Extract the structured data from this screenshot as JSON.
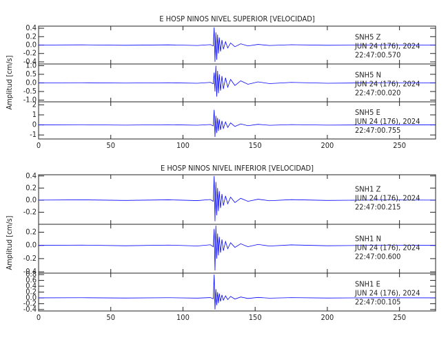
{
  "chart_data": [
    {
      "type": "line",
      "title": "E HOSP NINOS NIVEL SUPERIOR [VELOCIDAD]",
      "ylabel": "Amplitud [cm/s]",
      "xlim": [
        0,
        275
      ],
      "xticks": [
        0,
        50,
        100,
        150,
        200,
        250
      ],
      "color": "#0000ff",
      "x": [
        0,
        30,
        60,
        90,
        110,
        119,
        121,
        121.6,
        122.2,
        122.8,
        123.4,
        124,
        124.6,
        125.2,
        126,
        127,
        128,
        129.5,
        131,
        133,
        136,
        140,
        145,
        152,
        160,
        175,
        200,
        240,
        275
      ],
      "panels": [
        {
          "station": "SNH5   Z",
          "date": "JUN 24 (176), 2024",
          "time": "22:47:00.570",
          "ylim": [
            -0.45,
            0.45
          ],
          "yticks": [
            0.4,
            0.2,
            {
              "value": 0,
              "label": "0.0"
            },
            -0.2,
            -0.4
          ],
          "values": [
            0,
            0.005,
            -0.005,
            0.005,
            -0.01,
            0.01,
            -0.02,
            0.42,
            -0.4,
            0.3,
            -0.35,
            0.25,
            -0.2,
            0.18,
            -0.15,
            0.12,
            -0.1,
            0.08,
            -0.07,
            0.05,
            -0.04,
            0.03,
            -0.02,
            0.015,
            -0.01,
            0.008,
            -0.005,
            0.003,
            0
          ]
        },
        {
          "station": "SNH5   N",
          "date": "JUN 24 (176), 2024",
          "time": "22:47:00.020",
          "ylim": [
            -1.1,
            1.1
          ],
          "yticks": [
            {
              "value": 1,
              "label": "1.0"
            },
            0.5,
            {
              "value": 0,
              "label": "0.0"
            },
            -0.5,
            {
              "value": -1,
              "label": "-1.0"
            }
          ],
          "values": [
            0,
            0.01,
            -0.01,
            0.01,
            -0.02,
            0.03,
            -0.05,
            0.6,
            -0.5,
            1.0,
            -0.8,
            0.7,
            -0.6,
            0.5,
            -0.45,
            0.4,
            -0.35,
            0.3,
            -0.25,
            0.2,
            -0.15,
            0.12,
            -0.08,
            0.06,
            -0.04,
            0.03,
            -0.02,
            0.01,
            0
          ]
        },
        {
          "station": "SNH5   E",
          "date": "JUN 24 (176), 2024",
          "time": "22:47:00.755",
          "ylim": [
            -1.4,
            2.3
          ],
          "yticks": [
            2,
            1,
            0,
            -1
          ],
          "values": [
            0,
            0.02,
            -0.02,
            0.02,
            -0.03,
            0.04,
            -0.1,
            1.5,
            -1.2,
            0.9,
            -0.8,
            0.7,
            -0.6,
            0.55,
            -0.5,
            0.4,
            -0.35,
            0.3,
            -0.25,
            0.2,
            -0.15,
            0.1,
            -0.08,
            0.06,
            -0.04,
            0.03,
            -0.02,
            0.01,
            0
          ]
        }
      ]
    },
    {
      "type": "line",
      "title": "E HOSP NINOS NIVEL INFERIOR [VELOCIDAD]",
      "ylabel": "Amplitud [cm/s]",
      "xlim": [
        0,
        275
      ],
      "xticks": [
        0,
        50,
        100,
        150,
        200,
        250
      ],
      "color": "#0000ff",
      "x": [
        0,
        30,
        60,
        90,
        110,
        119,
        121,
        121.6,
        122.2,
        122.8,
        123.4,
        124,
        124.6,
        125.2,
        126,
        127,
        128,
        129.5,
        131,
        133,
        136,
        140,
        145,
        152,
        160,
        175,
        200,
        240,
        275
      ],
      "panels": [
        {
          "station": "SNH1   Z",
          "date": "JUN 24 (176), 2024",
          "time": "22:47:00.215",
          "ylim": [
            -0.4,
            0.42
          ],
          "yticks": [
            0.4,
            0.2,
            {
              "value": 0,
              "label": "0.0"
            },
            -0.2
          ],
          "values": [
            0,
            0.005,
            -0.005,
            0.005,
            -0.008,
            0.01,
            -0.02,
            0.4,
            -0.35,
            0.3,
            -0.25,
            0.2,
            -0.18,
            0.15,
            -0.13,
            0.1,
            -0.09,
            0.07,
            -0.06,
            0.05,
            -0.04,
            0.03,
            -0.02,
            0.015,
            -0.01,
            0.008,
            -0.005,
            0.003,
            0
          ]
        },
        {
          "station": "SNH1   N",
          "date": "JUN 24 (176), 2024",
          "time": "22:47:00.600",
          "ylim": [
            -0.42,
            0.32
          ],
          "yticks": [
            0.2,
            {
              "value": 0,
              "label": "0.0"
            },
            -0.2,
            -0.4
          ],
          "values": [
            0,
            0.005,
            -0.005,
            0.005,
            -0.008,
            0.01,
            -0.02,
            0.25,
            -0.38,
            0.3,
            -0.2,
            0.18,
            -0.15,
            0.13,
            -0.11,
            0.09,
            -0.08,
            0.06,
            -0.05,
            0.04,
            -0.03,
            0.025,
            -0.02,
            0.015,
            -0.01,
            0.008,
            -0.005,
            0.003,
            0
          ]
        },
        {
          "station": "SNH1   E",
          "date": "JUN 24 (176), 2024",
          "time": "22:47:00.105",
          "ylim": [
            -0.45,
            0.85
          ],
          "yticks": [
            0.8,
            0.6,
            0.4,
            0.2,
            {
              "value": 0,
              "label": "0.0"
            },
            -0.2,
            -0.4
          ],
          "values": [
            0,
            0.005,
            -0.005,
            0.005,
            -0.008,
            0.01,
            -0.03,
            0.8,
            -0.4,
            0.3,
            -0.25,
            0.2,
            -0.18,
            0.15,
            -0.12,
            0.1,
            -0.08,
            0.07,
            -0.06,
            0.05,
            -0.04,
            0.03,
            -0.02,
            0.015,
            -0.01,
            0.008,
            -0.005,
            0.003,
            0
          ]
        }
      ]
    }
  ]
}
